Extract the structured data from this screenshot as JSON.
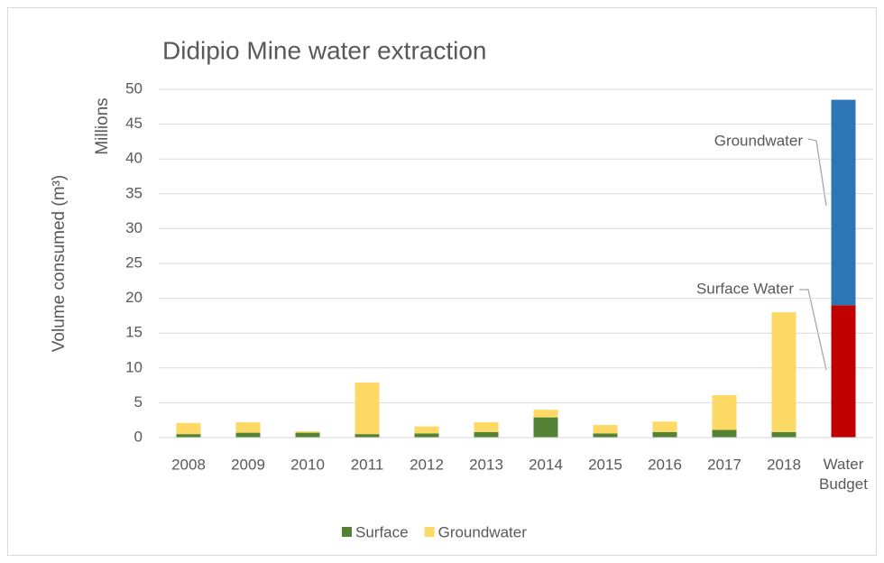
{
  "chart_data": {
    "type": "stacked_bar",
    "title": "Didipio Mine water extraction",
    "y_label": "Volume consumed (m³)",
    "y_unit_label": "Millions",
    "categories": [
      "2008",
      "2009",
      "2010",
      "2011",
      "2012",
      "2013",
      "2014",
      "2015",
      "2016",
      "2017",
      "2018",
      "Water Budget"
    ],
    "series": [
      {
        "name": "Surface",
        "color": "#548235",
        "colors": [
          "#548235",
          "#548235",
          "#548235",
          "#548235",
          "#548235",
          "#548235",
          "#548235",
          "#548235",
          "#548235",
          "#548235",
          "#548235",
          "#c00000"
        ],
        "values": [
          0.5,
          0.7,
          0.7,
          0.5,
          0.6,
          0.8,
          2.9,
          0.6,
          0.8,
          1.1,
          0.8,
          19
        ]
      },
      {
        "name": "Groundwater",
        "color": "#ffd966",
        "colors": [
          "#ffd966",
          "#ffd966",
          "#ffd966",
          "#ffd966",
          "#ffd966",
          "#ffd966",
          "#ffd966",
          "#ffd966",
          "#ffd966",
          "#ffd966",
          "#ffd966",
          "#2e75b6"
        ],
        "values": [
          1.6,
          1.5,
          0.2,
          7.4,
          1.0,
          1.4,
          1.1,
          1.2,
          1.5,
          5.0,
          17.2,
          29.5
        ]
      }
    ],
    "annotations": [
      "Groundwater",
      "Surface Water"
    ],
    "ylim": [
      0,
      50
    ],
    "yticks": [
      0,
      5,
      10,
      15,
      20,
      25,
      30,
      35,
      40,
      45,
      50
    ],
    "grid": true,
    "legend": "bottom"
  }
}
